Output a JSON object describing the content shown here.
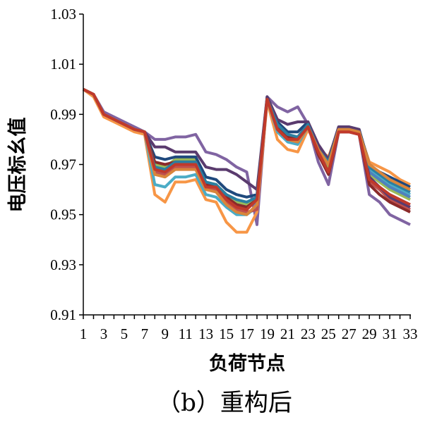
{
  "chart_data": {
    "type": "line",
    "title": "",
    "caption": "（b）重构后",
    "xlabel": "负荷节点",
    "ylabel": "电压标幺值",
    "ylim": [
      0.91,
      1.03
    ],
    "xlim": [
      1,
      33
    ],
    "yticks": [
      0.91,
      0.93,
      0.95,
      0.97,
      0.99,
      1.01,
      1.03
    ],
    "ytick_labels": [
      "0.91",
      "0.93",
      "0.95",
      "0.97",
      "0.99",
      "1.01",
      "1.03"
    ],
    "xticks": [
      1,
      3,
      5,
      7,
      9,
      11,
      13,
      15,
      17,
      19,
      21,
      23,
      25,
      27,
      29,
      31,
      33
    ],
    "xtick_labels": [
      "1",
      "3",
      "5",
      "7",
      "9",
      "11",
      "13",
      "15",
      "17",
      "19",
      "21",
      "23",
      "25",
      "27",
      "29",
      "31",
      "33"
    ],
    "grid": false,
    "legend": "none",
    "x": [
      1,
      2,
      3,
      4,
      5,
      6,
      7,
      8,
      9,
      10,
      11,
      12,
      13,
      14,
      15,
      16,
      17,
      18,
      19,
      20,
      21,
      22,
      23,
      24,
      25,
      26,
      27,
      28,
      29,
      30,
      31,
      32,
      33
    ],
    "series": [
      {
        "color": "#8064a2",
        "values": [
          1.0,
          0.998,
          0.991,
          0.989,
          0.987,
          0.985,
          0.983,
          0.98,
          0.98,
          0.981,
          0.981,
          0.982,
          0.975,
          0.974,
          0.972,
          0.969,
          0.967,
          0.946,
          0.997,
          0.993,
          0.991,
          0.993,
          0.986,
          0.971,
          0.962,
          0.983,
          0.983,
          0.982,
          0.958,
          0.955,
          0.95,
          0.948,
          0.946
        ]
      },
      {
        "color": "#f79646",
        "values": [
          1.0,
          0.997,
          0.989,
          0.987,
          0.985,
          0.983,
          0.982,
          0.958,
          0.955,
          0.963,
          0.963,
          0.964,
          0.956,
          0.955,
          0.947,
          0.943,
          0.943,
          0.951,
          0.995,
          0.98,
          0.976,
          0.975,
          0.984,
          0.976,
          0.973,
          0.984,
          0.984,
          0.983,
          0.971,
          0.969,
          0.967,
          0.964,
          0.962
        ]
      },
      {
        "color": "#4bacc6",
        "values": [
          1.0,
          0.998,
          0.99,
          0.988,
          0.986,
          0.984,
          0.983,
          0.962,
          0.961,
          0.965,
          0.965,
          0.966,
          0.958,
          0.957,
          0.953,
          0.95,
          0.95,
          0.953,
          0.996,
          0.983,
          0.979,
          0.978,
          0.985,
          0.974,
          0.969,
          0.984,
          0.984,
          0.983,
          0.968,
          0.965,
          0.962,
          0.96,
          0.958
        ]
      },
      {
        "color": "#9bbb59",
        "values": [
          1.0,
          0.998,
          0.99,
          0.988,
          0.986,
          0.984,
          0.983,
          0.97,
          0.969,
          0.972,
          0.972,
          0.972,
          0.963,
          0.962,
          0.958,
          0.955,
          0.954,
          0.957,
          0.996,
          0.985,
          0.981,
          0.98,
          0.986,
          0.975,
          0.969,
          0.984,
          0.984,
          0.983,
          0.966,
          0.963,
          0.96,
          0.958,
          0.956
        ]
      },
      {
        "color": "#c0504d",
        "values": [
          1.0,
          0.998,
          0.99,
          0.988,
          0.986,
          0.984,
          0.983,
          0.967,
          0.966,
          0.969,
          0.969,
          0.969,
          0.961,
          0.96,
          0.955,
          0.952,
          0.951,
          0.952,
          0.996,
          0.984,
          0.98,
          0.979,
          0.985,
          0.974,
          0.967,
          0.983,
          0.983,
          0.982,
          0.963,
          0.96,
          0.956,
          0.954,
          0.952
        ]
      },
      {
        "color": "#1f497d",
        "values": [
          1.0,
          0.998,
          0.99,
          0.988,
          0.986,
          0.984,
          0.983,
          0.973,
          0.972,
          0.973,
          0.973,
          0.973,
          0.965,
          0.964,
          0.96,
          0.958,
          0.957,
          0.958,
          0.997,
          0.987,
          0.983,
          0.983,
          0.987,
          0.977,
          0.972,
          0.985,
          0.985,
          0.984,
          0.97,
          0.967,
          0.965,
          0.963,
          0.961
        ]
      },
      {
        "color": "#4f81bd",
        "values": [
          1.0,
          0.998,
          0.99,
          0.988,
          0.986,
          0.984,
          0.983,
          0.968,
          0.967,
          0.97,
          0.97,
          0.97,
          0.962,
          0.961,
          0.957,
          0.954,
          0.953,
          0.955,
          0.996,
          0.985,
          0.981,
          0.98,
          0.986,
          0.975,
          0.97,
          0.984,
          0.984,
          0.983,
          0.967,
          0.964,
          0.961,
          0.959,
          0.957
        ]
      },
      {
        "color": "#5a3b6e",
        "values": [
          1.0,
          0.998,
          0.99,
          0.988,
          0.986,
          0.984,
          0.983,
          0.977,
          0.977,
          0.975,
          0.975,
          0.975,
          0.969,
          0.968,
          0.968,
          0.966,
          0.963,
          0.96,
          0.997,
          0.988,
          0.986,
          0.987,
          0.987,
          0.978,
          0.972,
          0.985,
          0.985,
          0.984,
          0.965,
          0.961,
          0.957,
          0.955,
          0.953
        ]
      },
      {
        "color": "#8b2a2a",
        "values": [
          1.0,
          0.998,
          0.99,
          0.988,
          0.986,
          0.984,
          0.983,
          0.971,
          0.97,
          0.971,
          0.971,
          0.971,
          0.962,
          0.962,
          0.957,
          0.954,
          0.953,
          0.956,
          0.996,
          0.985,
          0.981,
          0.981,
          0.986,
          0.974,
          0.966,
          0.983,
          0.983,
          0.982,
          0.962,
          0.958,
          0.955,
          0.953,
          0.951
        ]
      },
      {
        "color": "#2c7fa0",
        "values": [
          1.0,
          0.998,
          0.99,
          0.988,
          0.986,
          0.984,
          0.983,
          0.969,
          0.968,
          0.971,
          0.971,
          0.971,
          0.963,
          0.962,
          0.958,
          0.956,
          0.955,
          0.957,
          0.996,
          0.986,
          0.982,
          0.981,
          0.986,
          0.976,
          0.971,
          0.984,
          0.984,
          0.983,
          0.969,
          0.966,
          0.963,
          0.961,
          0.959
        ]
      },
      {
        "color": "#d9853b",
        "values": [
          1.0,
          0.998,
          0.99,
          0.988,
          0.986,
          0.984,
          0.983,
          0.966,
          0.965,
          0.968,
          0.968,
          0.968,
          0.96,
          0.959,
          0.954,
          0.951,
          0.95,
          0.954,
          0.996,
          0.984,
          0.98,
          0.979,
          0.985,
          0.976,
          0.97,
          0.984,
          0.984,
          0.983,
          0.97,
          0.967,
          0.964,
          0.962,
          0.96
        ]
      },
      {
        "color": "#c0392b",
        "values": [
          1.0,
          0.998,
          0.99,
          0.988,
          0.986,
          0.984,
          0.983,
          0.968,
          0.967,
          0.97,
          0.97,
          0.97,
          0.961,
          0.961,
          0.956,
          0.953,
          0.952,
          0.956,
          0.996,
          0.984,
          0.98,
          0.98,
          0.985,
          0.975,
          0.967,
          0.983,
          0.983,
          0.982,
          0.964,
          0.961,
          0.958,
          0.956,
          0.954
        ]
      }
    ]
  }
}
